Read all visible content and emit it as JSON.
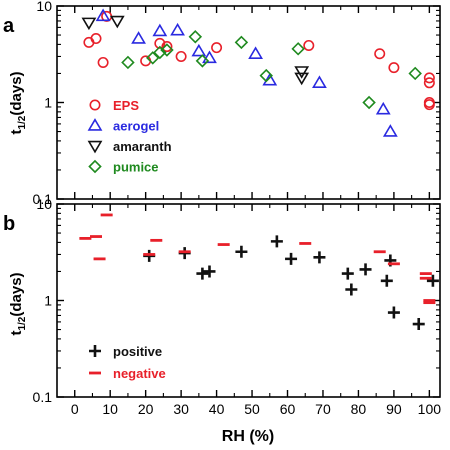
{
  "chart_data": [
    {
      "panel_label": "a",
      "type": "scatter",
      "ylabel_main": "t",
      "ylabel_sub": "1/2",
      "ylabel_rest": "(days)",
      "yscale": "log",
      "ylim": [
        0.1,
        10
      ],
      "yticks": [
        {
          "v": 0.1,
          "label": "0.1"
        },
        {
          "v": 1,
          "label": "1"
        },
        {
          "v": 10,
          "label": "10"
        }
      ],
      "xlim": [
        -5,
        103
      ],
      "series": [
        {
          "name": "EPS",
          "marker": "circle",
          "color": "#e8202a",
          "points": [
            [
              4,
              4.2
            ],
            [
              6,
              4.6
            ],
            [
              8,
              2.6
            ],
            [
              9,
              7.8
            ],
            [
              20,
              2.7
            ],
            [
              24,
              4.1
            ],
            [
              26,
              3.8
            ],
            [
              30,
              3.0
            ],
            [
              40,
              3.7
            ],
            [
              66,
              3.9
            ],
            [
              86,
              3.2
            ],
            [
              90,
              2.3
            ],
            [
              100,
              1.8
            ],
            [
              100,
              1.6
            ],
            [
              100,
              1.0
            ],
            [
              100,
              0.95
            ]
          ]
        },
        {
          "name": "aerogel",
          "marker": "triangle-up",
          "color": "#2a2ae0",
          "points": [
            [
              8,
              7.9
            ],
            [
              18,
              4.6
            ],
            [
              24,
              5.5
            ],
            [
              29,
              5.6
            ],
            [
              35,
              3.4
            ],
            [
              38,
              2.9
            ],
            [
              51,
              3.2
            ],
            [
              55,
              1.7
            ],
            [
              69,
              1.6
            ],
            [
              87,
              0.85
            ],
            [
              89,
              0.5
            ]
          ]
        },
        {
          "name": "amaranth",
          "marker": "triangle-down",
          "color": "#111111",
          "points": [
            [
              4,
              6.7
            ],
            [
              12,
              7.0
            ],
            [
              64,
              2.1
            ],
            [
              64,
              1.8
            ]
          ]
        },
        {
          "name": "pumice",
          "marker": "diamond",
          "color": "#1f8a1f",
          "points": [
            [
              15,
              2.6
            ],
            [
              22,
              2.9
            ],
            [
              24,
              3.3
            ],
            [
              26,
              3.5
            ],
            [
              34,
              4.8
            ],
            [
              36,
              2.7
            ],
            [
              47,
              4.2
            ],
            [
              54,
              1.9
            ],
            [
              63,
              3.6
            ],
            [
              83,
              1.0
            ],
            [
              96,
              2.0
            ]
          ]
        }
      ]
    },
    {
      "panel_label": "b",
      "type": "scatter",
      "ylabel_main": "t",
      "ylabel_sub": "1/2",
      "ylabel_rest": "(days)",
      "yscale": "log",
      "ylim": [
        0.1,
        10
      ],
      "yticks": [
        {
          "v": 0.1,
          "label": "0.1"
        },
        {
          "v": 1,
          "label": "1"
        },
        {
          "v": 10,
          "label": "10"
        }
      ],
      "xlabel": "RH (%)",
      "xlim": [
        -5,
        103
      ],
      "xticks": [
        {
          "v": 0,
          "label": "0"
        },
        {
          "v": 10,
          "label": "10"
        },
        {
          "v": 20,
          "label": "20"
        },
        {
          "v": 30,
          "label": "30"
        },
        {
          "v": 40,
          "label": "40"
        },
        {
          "v": 50,
          "label": "50"
        },
        {
          "v": 60,
          "label": "60"
        },
        {
          "v": 70,
          "label": "70"
        },
        {
          "v": 80,
          "label": "80"
        },
        {
          "v": 90,
          "label": "90"
        },
        {
          "v": 100,
          "label": "100"
        }
      ],
      "series": [
        {
          "name": "positive",
          "marker": "plus",
          "color": "#111111",
          "points": [
            [
              21,
              2.9
            ],
            [
              31,
              3.1
            ],
            [
              36,
              1.9
            ],
            [
              38,
              2.0
            ],
            [
              47,
              3.2
            ],
            [
              57,
              4.1
            ],
            [
              61,
              2.7
            ],
            [
              69,
              2.8
            ],
            [
              77,
              1.9
            ],
            [
              78,
              1.3
            ],
            [
              82,
              2.1
            ],
            [
              88,
              1.6
            ],
            [
              89,
              2.6
            ],
            [
              90,
              0.75
            ],
            [
              97,
              0.57
            ],
            [
              101,
              1.6
            ]
          ]
        },
        {
          "name": "negative",
          "marker": "minus",
          "color": "#e8202a",
          "points": [
            [
              3,
              4.4
            ],
            [
              6,
              4.6
            ],
            [
              7,
              2.7
            ],
            [
              9,
              7.7
            ],
            [
              21,
              3.0
            ],
            [
              23,
              4.2
            ],
            [
              31,
              3.2
            ],
            [
              42,
              3.8
            ],
            [
              65,
              3.9
            ],
            [
              86,
              3.2
            ],
            [
              90,
              2.4
            ],
            [
              99,
              1.9
            ],
            [
              99,
              1.7
            ],
            [
              100,
              1.0
            ],
            [
              100,
              0.95
            ]
          ]
        }
      ]
    }
  ]
}
